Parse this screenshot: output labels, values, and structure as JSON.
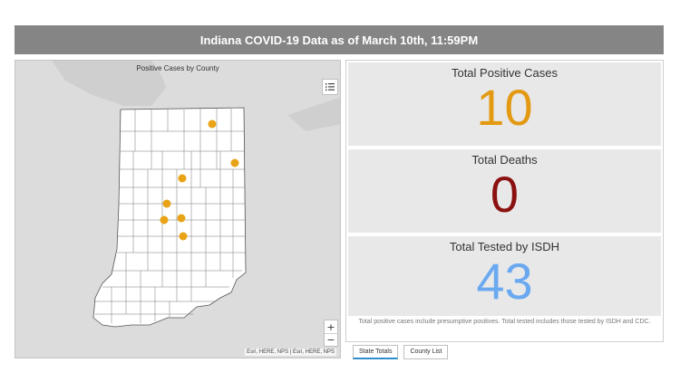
{
  "header": {
    "title": "Indiana COVID-19 Data as of March 10th, 11:59PM"
  },
  "map": {
    "title": "Positive Cases by County",
    "attribution": "Esri, HERE, NPS | Esri, HERE, NPS",
    "zoom_in_label": "+",
    "zoom_out_label": "−",
    "legend_icon": "list-icon",
    "case_dot_color": "#e8a317"
  },
  "stats": {
    "positive": {
      "title": "Total Positive Cases",
      "value": "10",
      "color": "#e39a12"
    },
    "deaths": {
      "title": "Total Deaths",
      "value": "0",
      "color": "#8b1010"
    },
    "tested": {
      "title": "Total Tested by ISDH",
      "value": "43",
      "color": "#6aa9f0"
    }
  },
  "footnote": "Total positive cases include presumptive positives.  Total tested includes those tested by ISDH and CDC.",
  "tabs": [
    {
      "label": "State Totals",
      "active": true
    },
    {
      "label": "County List",
      "active": false
    }
  ]
}
